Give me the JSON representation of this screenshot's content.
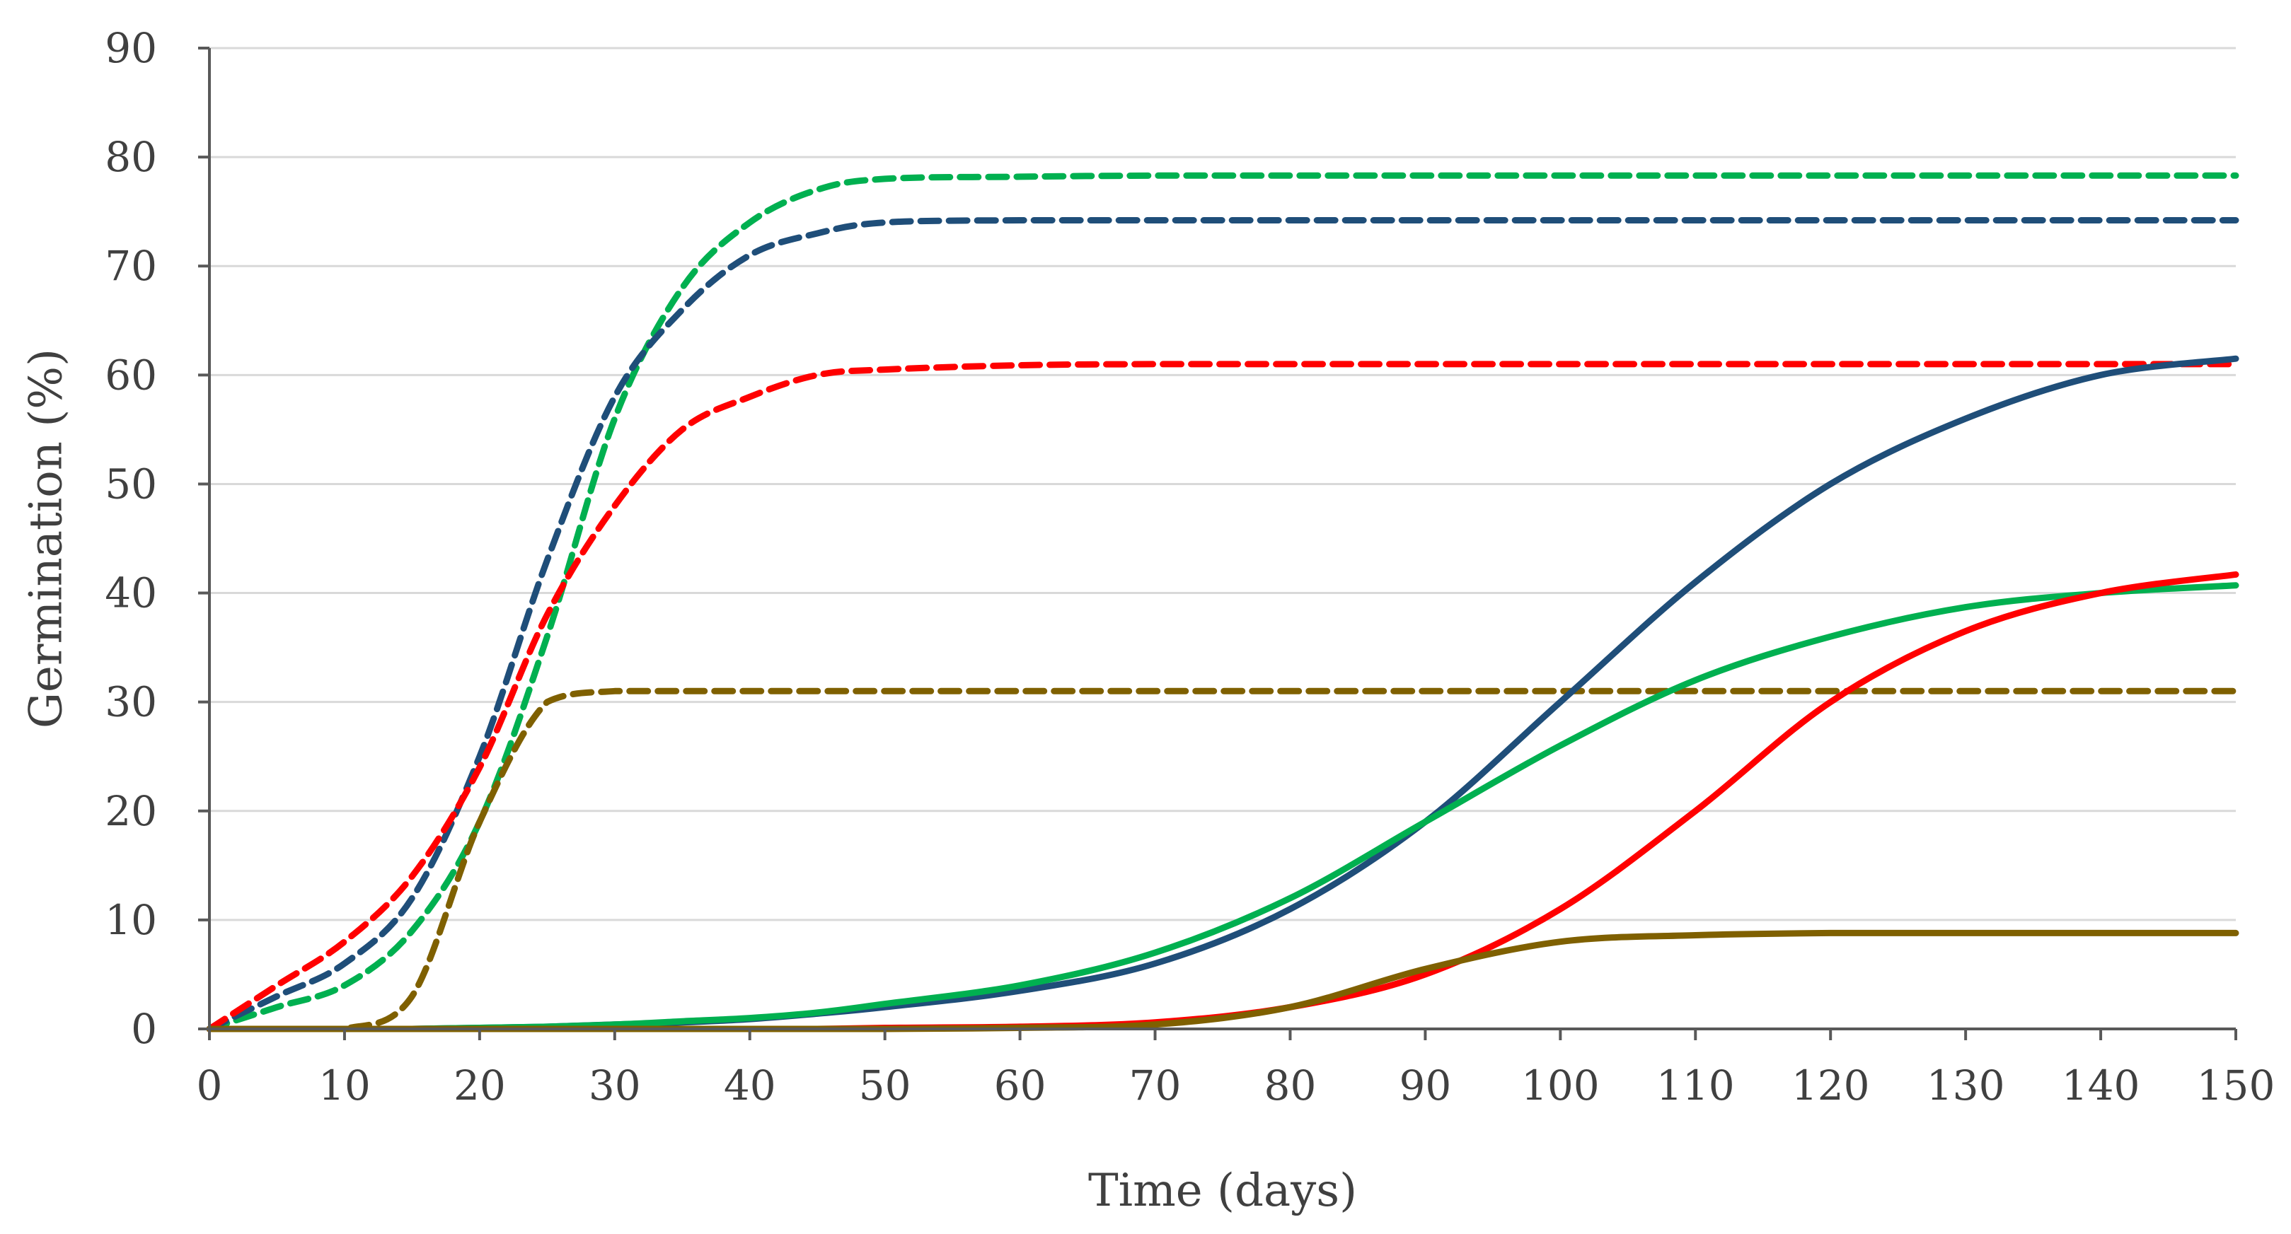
{
  "chart_data": {
    "type": "line",
    "title": "",
    "xlabel": "Time (days)",
    "ylabel": "Germination (%)",
    "xlim": [
      0,
      150
    ],
    "ylim": [
      0,
      90
    ],
    "x_ticks": [
      0,
      10,
      20,
      30,
      40,
      50,
      60,
      70,
      80,
      90,
      100,
      110,
      120,
      130,
      140,
      150
    ],
    "y_ticks": [
      0,
      10,
      20,
      30,
      40,
      50,
      60,
      70,
      80,
      90
    ],
    "grid": "horizontal",
    "legend": "none",
    "x": [
      0,
      5,
      10,
      15,
      20,
      25,
      30,
      35,
      40,
      45,
      50,
      60,
      70,
      80,
      90,
      100,
      110,
      120,
      130,
      140,
      150
    ],
    "series": [
      {
        "name": "green-dashed",
        "color": "#00b050",
        "style": "dashed",
        "values": [
          0,
          2,
          4,
          9,
          19,
          36,
          56,
          68,
          74,
          77,
          78,
          78.2,
          78.3,
          78.3,
          78.3,
          78.3,
          78.3,
          78.3,
          78.3,
          78.3,
          78.3
        ]
      },
      {
        "name": "blue-dashed",
        "color": "#1f4e79",
        "style": "dashed",
        "values": [
          0,
          3,
          6,
          12,
          25,
          43,
          58,
          66,
          71,
          73,
          74,
          74.2,
          74.2,
          74.2,
          74.2,
          74.2,
          74.2,
          74.2,
          74.2,
          74.2,
          74.2
        ]
      },
      {
        "name": "red-dashed",
        "color": "#ff0000",
        "style": "dashed",
        "values": [
          0,
          4,
          8,
          14,
          24,
          38,
          48,
          55,
          58,
          60,
          60.5,
          60.9,
          61,
          61,
          61,
          61,
          61,
          61,
          61,
          61,
          61
        ]
      },
      {
        "name": "brown-dashed",
        "color": "#7f6000",
        "style": "dashed",
        "values": [
          0,
          0,
          0,
          3,
          19,
          30,
          31,
          31,
          31,
          31,
          31,
          31,
          31,
          31,
          31,
          31,
          31,
          31,
          31,
          31,
          31
        ]
      },
      {
        "name": "blue-solid",
        "color": "#1f4e79",
        "style": "solid",
        "values": [
          0,
          0,
          0,
          0,
          0.1,
          0.2,
          0.4,
          0.6,
          0.9,
          1.4,
          2,
          3.5,
          6,
          11,
          19,
          30,
          41,
          50,
          56,
          60,
          61.5
        ]
      },
      {
        "name": "green-solid",
        "color": "#00b050",
        "style": "solid",
        "values": [
          0,
          0,
          0,
          0,
          0.1,
          0.2,
          0.4,
          0.7,
          1,
          1.5,
          2.3,
          4,
          7,
          12,
          19,
          26,
          32,
          36,
          38.7,
          40,
          40.7
        ]
      },
      {
        "name": "red-solid",
        "color": "#ff0000",
        "style": "solid",
        "values": [
          0,
          0,
          0,
          0,
          0,
          0,
          0,
          0,
          0,
          0,
          0.1,
          0.2,
          0.6,
          2,
          5,
          11,
          20,
          30,
          36.5,
          40,
          41.7
        ]
      },
      {
        "name": "brown-solid",
        "color": "#7f6000",
        "style": "solid",
        "values": [
          0,
          0,
          0,
          0,
          0,
          0,
          0,
          0,
          0,
          0,
          0,
          0.1,
          0.4,
          2,
          5.5,
          8,
          8.6,
          8.8,
          8.8,
          8.8,
          8.8
        ]
      }
    ]
  }
}
